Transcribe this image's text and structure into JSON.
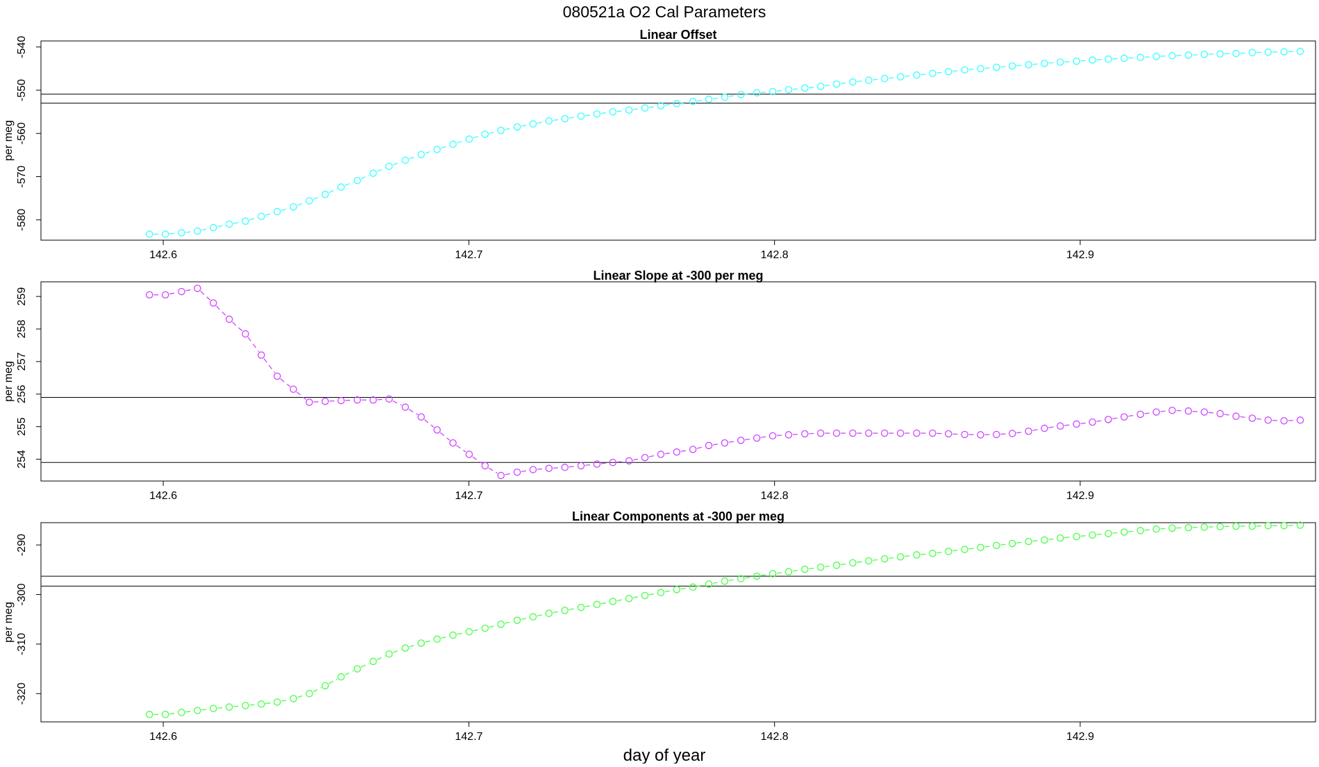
{
  "figure": {
    "title": "080521a   O2 Cal Parameters",
    "xlabel": "day of year"
  },
  "chart_data": [
    {
      "type": "scatter",
      "title": "Linear Offset",
      "ylabel": "per meg",
      "xlabel": "",
      "color": "#33ffff",
      "marker": "open-circle",
      "line": "dashed",
      "xlim": [
        142.56,
        142.977
      ],
      "ylim": [
        -584.7,
        -538.6
      ],
      "xticks": [
        142.6,
        142.7,
        142.8,
        142.9
      ],
      "xtick_labels": [
        "142.6",
        "142.7",
        "142.8",
        "142.9"
      ],
      "yticks": [
        -580,
        -570,
        -560,
        -550,
        -540
      ],
      "ytick_labels": [
        "-580",
        "-570",
        "-560",
        "-550",
        "-540"
      ],
      "hlines": [
        -550.9,
        -553.0
      ],
      "series": [
        {
          "x": [
            142.5955,
            142.6007,
            142.606,
            142.6112,
            142.6164,
            142.6216,
            142.6269,
            142.6321,
            142.6373,
            142.6426,
            142.6478,
            142.653,
            142.6582,
            142.6635,
            142.6687,
            142.6739,
            142.6792,
            142.6844,
            142.6896,
            142.6948,
            142.7001,
            142.7053,
            142.7105,
            142.7158,
            142.721,
            142.7262,
            142.7314,
            142.7367,
            142.7419,
            142.7471,
            142.7524,
            142.7576,
            142.7628,
            142.768,
            142.7733,
            142.7785,
            142.7837,
            142.789,
            142.7942,
            142.7994,
            142.8046,
            142.8099,
            142.8151,
            142.8203,
            142.8256,
            142.8308,
            142.836,
            142.8412,
            142.8465,
            142.8517,
            142.8569,
            142.8622,
            142.8674,
            142.8726,
            142.8778,
            142.8831,
            142.8883,
            142.8935,
            142.8988,
            142.904,
            142.9092,
            142.9144,
            142.9197,
            142.9249,
            142.9301,
            142.9354,
            142.9406,
            142.9458,
            142.951,
            142.9563,
            142.9615,
            142.9667,
            142.972
          ],
          "y": [
            -583.3,
            -583.3,
            -583.0,
            -582.6,
            -581.8,
            -581.0,
            -580.3,
            -579.2,
            -578.1,
            -577.0,
            -575.6,
            -574.1,
            -572.4,
            -570.9,
            -569.2,
            -567.6,
            -566.2,
            -564.9,
            -563.7,
            -562.5,
            -561.3,
            -560.2,
            -559.3,
            -558.5,
            -557.8,
            -557.1,
            -556.6,
            -556.0,
            -555.5,
            -555.0,
            -554.6,
            -554.1,
            -553.6,
            -553.1,
            -552.6,
            -552.1,
            -551.6,
            -551.0,
            -550.6,
            -550.3,
            -549.9,
            -549.5,
            -549.1,
            -548.6,
            -548.1,
            -547.7,
            -547.3,
            -546.9,
            -546.5,
            -546.1,
            -545.7,
            -545.3,
            -545.0,
            -544.7,
            -544.4,
            -544.1,
            -543.8,
            -543.5,
            -543.3,
            -543.0,
            -542.8,
            -542.6,
            -542.4,
            -542.2,
            -542.0,
            -541.9,
            -541.7,
            -541.6,
            -541.5,
            -541.3,
            -541.2,
            -541.1,
            -541.0
          ]
        }
      ]
    },
    {
      "type": "scatter",
      "title": "Linear Slope at -300 per meg",
      "ylabel": "per meg",
      "xlabel": "",
      "color": "#cc44ff",
      "marker": "open-circle",
      "line": "dashed",
      "xlim": [
        142.56,
        142.977
      ],
      "ylim": [
        253.33,
        259.45
      ],
      "xticks": [
        142.6,
        142.7,
        142.8,
        142.9
      ],
      "xtick_labels": [
        "142.6",
        "142.7",
        "142.8",
        "142.9"
      ],
      "yticks": [
        254,
        255,
        256,
        257,
        258,
        259
      ],
      "ytick_labels": [
        "254",
        "255",
        "256",
        "257",
        "258",
        "259"
      ],
      "hlines": [
        255.9,
        253.9
      ],
      "series": [
        {
          "x": [
            142.5955,
            142.6007,
            142.606,
            142.6112,
            142.6164,
            142.6216,
            142.6269,
            142.6321,
            142.6373,
            142.6426,
            142.6478,
            142.653,
            142.6582,
            142.6635,
            142.6687,
            142.6739,
            142.6792,
            142.6844,
            142.6896,
            142.6948,
            142.7001,
            142.7053,
            142.7105,
            142.7158,
            142.721,
            142.7262,
            142.7314,
            142.7367,
            142.7419,
            142.7471,
            142.7524,
            142.7576,
            142.7628,
            142.768,
            142.7733,
            142.7785,
            142.7837,
            142.789,
            142.7942,
            142.7994,
            142.8046,
            142.8099,
            142.8151,
            142.8203,
            142.8256,
            142.8308,
            142.836,
            142.8412,
            142.8465,
            142.8517,
            142.8569,
            142.8622,
            142.8674,
            142.8726,
            142.8778,
            142.8831,
            142.8883,
            142.8935,
            142.8988,
            142.904,
            142.9092,
            142.9144,
            142.9197,
            142.9249,
            142.9301,
            142.9354,
            142.9406,
            142.9458,
            142.951,
            142.9563,
            142.9615,
            142.9667,
            142.972
          ],
          "y": [
            259.05,
            259.05,
            259.15,
            259.25,
            258.8,
            258.3,
            257.85,
            257.2,
            256.55,
            256.15,
            255.75,
            255.78,
            255.8,
            255.82,
            255.82,
            255.85,
            255.6,
            255.3,
            254.9,
            254.5,
            254.15,
            253.8,
            253.5,
            253.6,
            253.68,
            253.72,
            253.75,
            253.8,
            253.85,
            253.9,
            253.95,
            254.05,
            254.15,
            254.22,
            254.3,
            254.42,
            254.5,
            254.58,
            254.65,
            254.72,
            254.75,
            254.78,
            254.8,
            254.8,
            254.8,
            254.8,
            254.8,
            254.8,
            254.8,
            254.8,
            254.78,
            254.76,
            254.75,
            254.76,
            254.79,
            254.86,
            254.95,
            255.02,
            255.08,
            255.14,
            255.22,
            255.3,
            255.38,
            255.45,
            255.5,
            255.48,
            255.45,
            255.4,
            255.32,
            255.26,
            255.2,
            255.18,
            255.2
          ]
        }
      ]
    },
    {
      "type": "scatter",
      "title": "Linear Components at -300 per meg",
      "ylabel": "per meg",
      "xlabel": "",
      "color": "#44ff44",
      "marker": "open-circle",
      "line": "dashed",
      "xlim": [
        142.56,
        142.977
      ],
      "ylim": [
        -325.7,
        -285.5
      ],
      "xticks": [
        142.6,
        142.7,
        142.8,
        142.9
      ],
      "xtick_labels": [
        "142.6",
        "142.7",
        "142.8",
        "142.9"
      ],
      "yticks": [
        -320,
        -310,
        -300,
        -290
      ],
      "ytick_labels": [
        "-320",
        "-310",
        "-300",
        "-290"
      ],
      "hlines": [
        -296.3,
        -298.3
      ],
      "series": [
        {
          "x": [
            142.5955,
            142.6007,
            142.606,
            142.6112,
            142.6164,
            142.6216,
            142.6269,
            142.6321,
            142.6373,
            142.6426,
            142.6478,
            142.653,
            142.6582,
            142.6635,
            142.6687,
            142.6739,
            142.6792,
            142.6844,
            142.6896,
            142.6948,
            142.7001,
            142.7053,
            142.7105,
            142.7158,
            142.721,
            142.7262,
            142.7314,
            142.7367,
            142.7419,
            142.7471,
            142.7524,
            142.7576,
            142.7628,
            142.768,
            142.7733,
            142.7785,
            142.7837,
            142.789,
            142.7942,
            142.7994,
            142.8046,
            142.8099,
            142.8151,
            142.8203,
            142.8256,
            142.8308,
            142.836,
            142.8412,
            142.8465,
            142.8517,
            142.8569,
            142.8622,
            142.8674,
            142.8726,
            142.8778,
            142.8831,
            142.8883,
            142.8935,
            142.8988,
            142.904,
            142.9092,
            142.9144,
            142.9197,
            142.9249,
            142.9301,
            142.9354,
            142.9406,
            142.9458,
            142.951,
            142.9563,
            142.9615,
            142.9667,
            142.972
          ],
          "y": [
            -324.2,
            -324.2,
            -323.8,
            -323.4,
            -323.0,
            -322.7,
            -322.4,
            -322.1,
            -321.7,
            -321.0,
            -320.0,
            -318.4,
            -316.6,
            -315.0,
            -313.5,
            -312.0,
            -310.8,
            -309.8,
            -309.0,
            -308.2,
            -307.5,
            -306.8,
            -306.0,
            -305.2,
            -304.5,
            -303.8,
            -303.2,
            -302.6,
            -302.0,
            -301.4,
            -300.8,
            -300.2,
            -299.6,
            -299.0,
            -298.5,
            -297.9,
            -297.3,
            -296.8,
            -296.3,
            -295.8,
            -295.4,
            -294.9,
            -294.5,
            -294.1,
            -293.6,
            -293.2,
            -292.8,
            -292.4,
            -292.0,
            -291.7,
            -291.3,
            -290.9,
            -290.5,
            -290.1,
            -289.7,
            -289.3,
            -289.0,
            -288.6,
            -288.3,
            -288.0,
            -287.7,
            -287.4,
            -287.1,
            -286.8,
            -286.6,
            -286.5,
            -286.4,
            -286.3,
            -286.2,
            -286.2,
            -286.1,
            -286.1,
            -286.0
          ]
        }
      ]
    }
  ]
}
